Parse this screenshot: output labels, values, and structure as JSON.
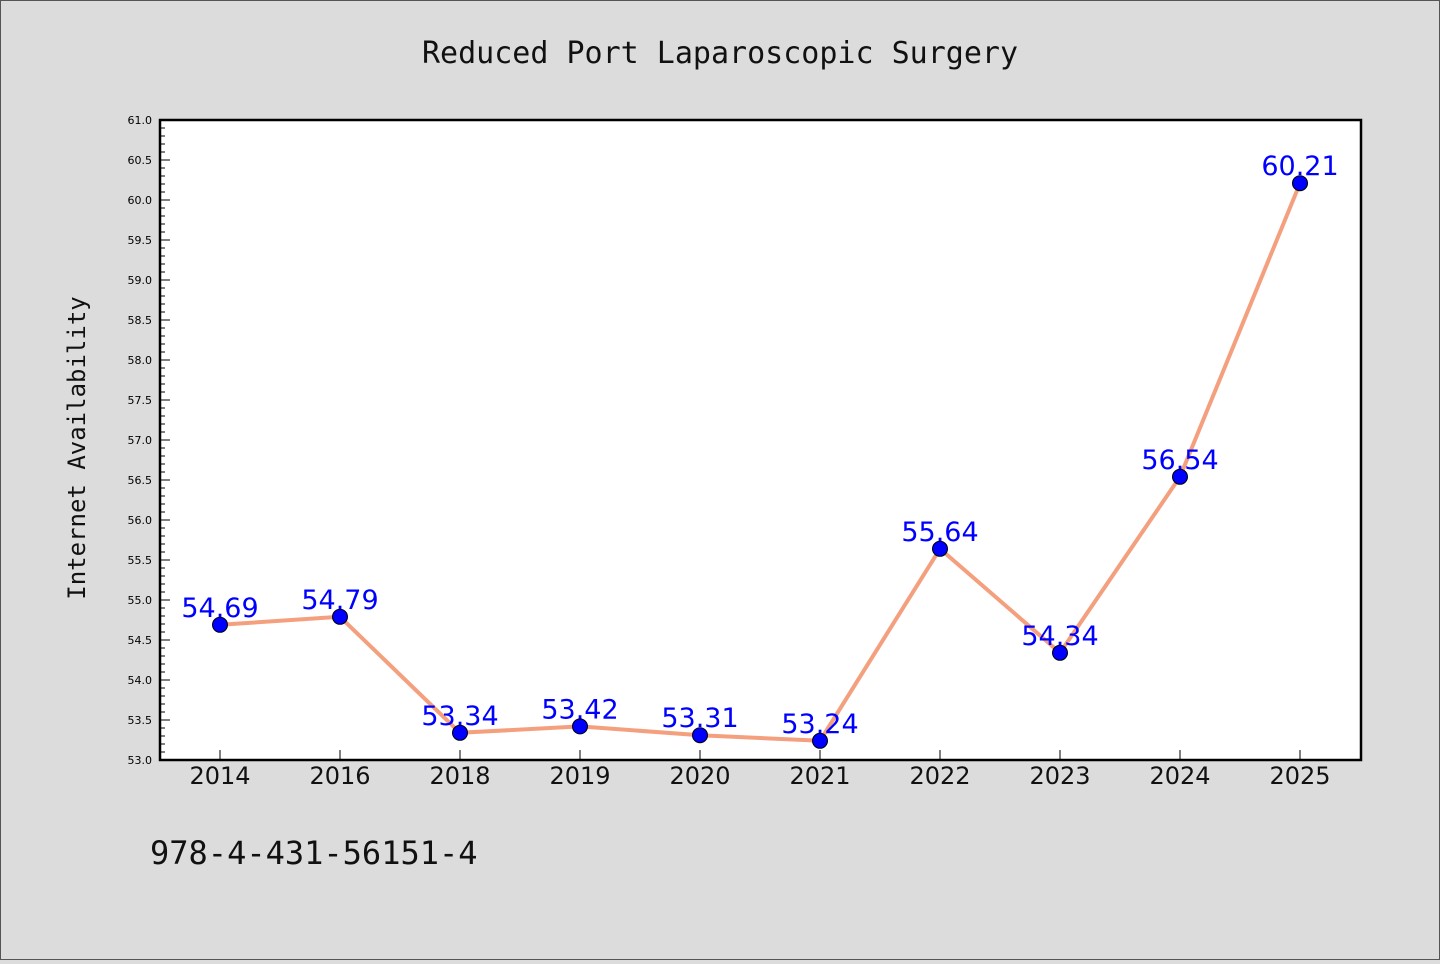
{
  "chart_data": {
    "type": "line",
    "title": "Reduced Port Laparoscopic Surgery",
    "xlabel": "",
    "ylabel": "Internet Availability",
    "categories": [
      "2014",
      "2016",
      "2018",
      "2019",
      "2020",
      "2021",
      "2022",
      "2023",
      "2024",
      "2025"
    ],
    "values": [
      54.69,
      54.79,
      53.34,
      53.42,
      53.31,
      53.24,
      55.64,
      54.34,
      56.54,
      60.21
    ],
    "data_labels": [
      "54.69",
      "54.79",
      "53.34",
      "53.42",
      "53.31",
      "53.24",
      "55.64",
      "54.34",
      "56.54",
      "60.21"
    ],
    "ylim": [
      53.0,
      61.0
    ],
    "yticks": [
      "53.0",
      "53.5",
      "54.0",
      "54.5",
      "55.0",
      "55.5",
      "56.0",
      "56.5",
      "57.0",
      "57.5",
      "58.0",
      "58.5",
      "59.0",
      "59.5",
      "60.0",
      "60.5",
      "61.0"
    ],
    "grid": false,
    "line_color": "#f4a07e",
    "marker_color": "#0000ff",
    "label_color": "#0000ff",
    "background": "#dcdcdc"
  },
  "footer": {
    "isbn": "978-4-431-56151-4"
  }
}
